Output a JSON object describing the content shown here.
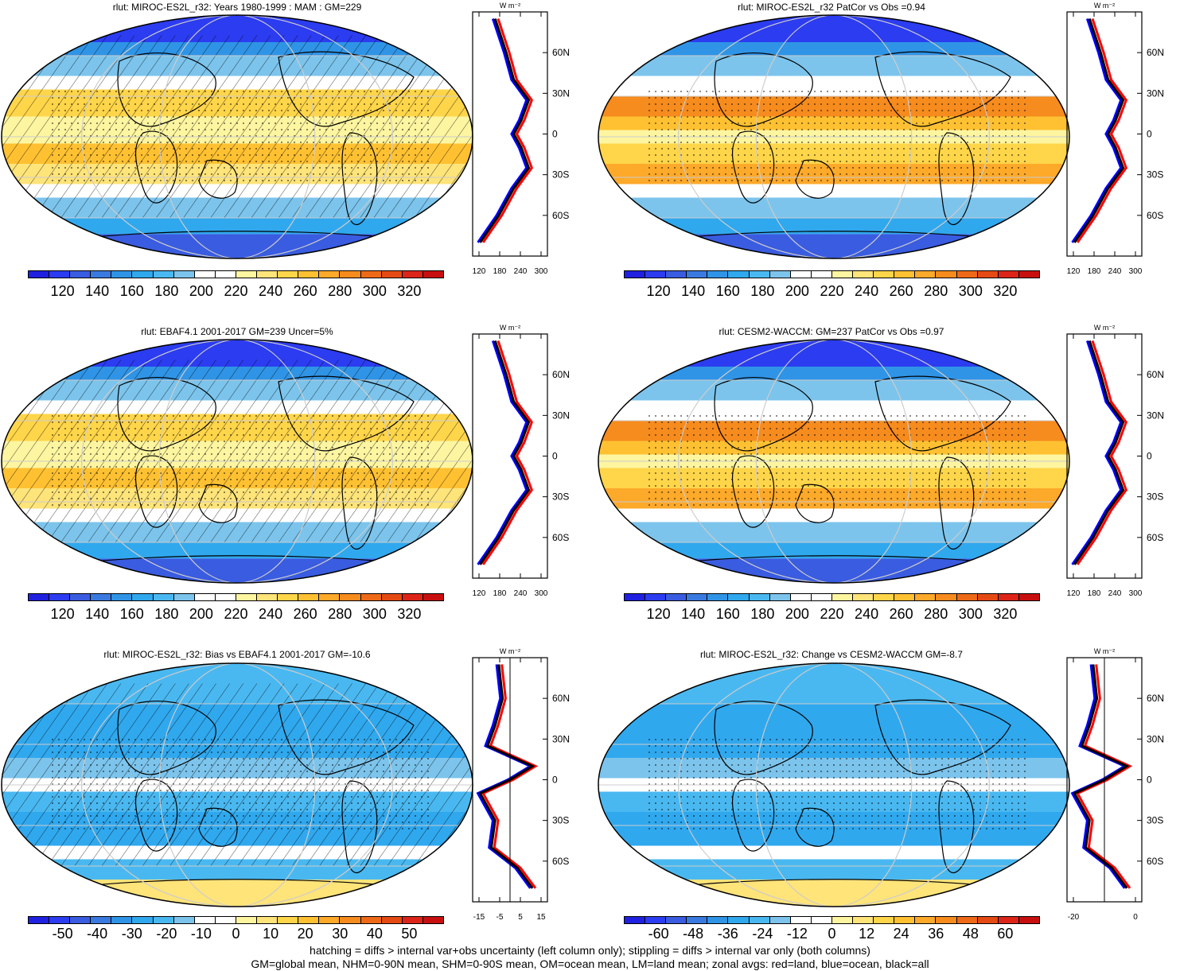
{
  "panels": [
    {
      "title": "rlut: MIROC-ES2L_r32: Years 1980-1999 : MAM : GM=229",
      "kind": "abs",
      "hatch": true
    },
    {
      "title": "rlut: MIROC-ES2L_r32 PatCor vs Obs =0.94",
      "kind": "abs",
      "hatch": false
    },
    {
      "title": "rlut: EBAF4.1 2001-2017 GM=239 Uncer=5%",
      "kind": "abs",
      "hatch": true
    },
    {
      "title": "rlut: CESM2-WACCM: GM=237 PatCor vs Obs =0.97",
      "kind": "abs",
      "hatch": false
    },
    {
      "title": "rlut: MIROC-ES2L_r32: Bias vs EBAF4.1 2001-2017 GM=-10.6",
      "kind": "diff",
      "hatch": true
    },
    {
      "title": "rlut: MIROC-ES2L_r32: Change vs CESM2-WACCM GM=-8.7",
      "kind": "diff",
      "hatch": false
    }
  ],
  "colorbars": {
    "abs": {
      "labels": [
        "120",
        "140",
        "160",
        "180",
        "200",
        "220",
        "240",
        "260",
        "280",
        "300",
        "320"
      ]
    },
    "bias": {
      "labels": [
        "-50",
        "-40",
        "-30",
        "-20",
        "-10",
        "0",
        "10",
        "20",
        "30",
        "40",
        "50"
      ]
    },
    "change": {
      "labels": [
        "-60",
        "-48",
        "-36",
        "-24",
        "-12",
        "0",
        "12",
        "24",
        "36",
        "48",
        "60"
      ]
    }
  },
  "zonal": {
    "unit": "W m⁻²",
    "lat_labels": [
      "60N",
      "30N",
      "0",
      "30S",
      "60S"
    ],
    "abs_x_labels": [
      "120",
      "180",
      "240",
      "300"
    ],
    "bias_x_labels": [
      "-15",
      "-5",
      "5",
      "15"
    ],
    "change_x_labels": [
      "-20",
      "0"
    ]
  },
  "colors": {
    "land_line": "#ff0000",
    "ocean_line": "#0000ff",
    "all_line": "#000000",
    "ramp": [
      "#2020e0",
      "#2c3cf0",
      "#3a5ce0",
      "#3a7ae0",
      "#2f94e6",
      "#30a8ee",
      "#4ab8f0",
      "#7cc4ec",
      "#ffffff",
      "#ffffff",
      "#fdf5a0",
      "#ffe47a",
      "#ffd54a",
      "#ffc132",
      "#fda92a",
      "#f68b1e",
      "#ee6a18",
      "#e54a14",
      "#dd2418",
      "#c80f0f"
    ]
  },
  "footer": {
    "line1": "hatching = diffs > internal var+obs uncertainty (left column only); stippling = diffs > internal var only (both columns)",
    "line2": "GM=global mean, NHM=0-90N mean, SHM=0-90S mean, OM=ocean mean, LM=land mean; zonal avgs: red=land, blue=ocean, black=all"
  }
}
